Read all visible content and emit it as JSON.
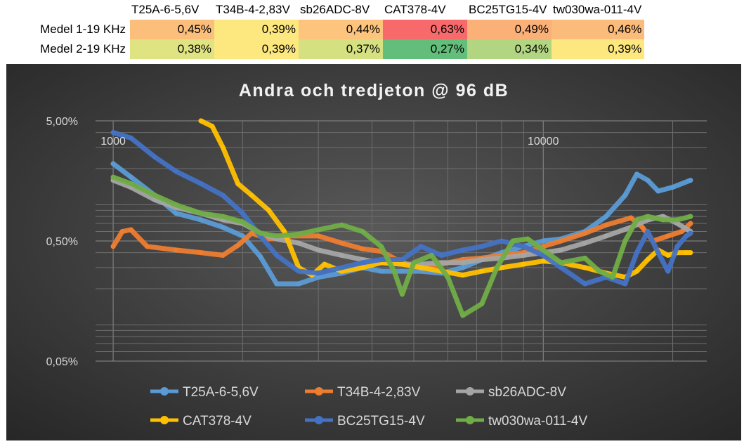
{
  "table": {
    "columns": [
      "T25A-6-5,6V",
      "T34B-4-2,83V",
      "sb26ADC-8V",
      "CAT378-4V",
      "BC25TG15-4V",
      "tw030wa-011-4V"
    ],
    "rows": [
      {
        "label": "Medel 1-19 KHz",
        "values": [
          "0,45%",
          "0,39%",
          "0,44%",
          "0,63%",
          "0,49%",
          "0,46%"
        ],
        "colors": [
          "#fbbf7b",
          "#fde880",
          "#fcc47c",
          "#f8696b",
          "#fbb078",
          "#fbbb7a"
        ]
      },
      {
        "label": "Medel 2-19 KHz",
        "values": [
          "0,38%",
          "0,39%",
          "0,37%",
          "0,27%",
          "0,34%",
          "0,39%"
        ],
        "colors": [
          "#e0e381",
          "#fde880",
          "#d5e080",
          "#63be7b",
          "#b1d580",
          "#fde880"
        ]
      }
    ]
  },
  "chart_data": {
    "type": "line",
    "title": "Andra och tredjeton @ 96 dB",
    "x_scale": "log",
    "y_scale": "log",
    "xlim": [
      910,
      24000
    ],
    "ylim": [
      0.05,
      5.0
    ],
    "x_tick_labels": [
      "1000",
      "10000"
    ],
    "y_tick_labels": [
      "5,00%",
      "0,50%",
      "0,05%"
    ],
    "y_ticks": [
      5.0,
      0.5,
      0.05
    ],
    "x_ticks": [
      1000,
      10000
    ],
    "grid": true,
    "legend_position": "bottom",
    "series": [
      {
        "name": "T25A-6-5,6V",
        "color": "#5b9bd5",
        "x": [
          1000,
          1100,
          1250,
          1400,
          1600,
          1800,
          2000,
          2200,
          2400,
          2700,
          3000,
          3400,
          3800,
          4200,
          4700,
          5200,
          5800,
          6500,
          7200,
          8000,
          9000,
          10000,
          11000,
          12500,
          14000,
          15500,
          16500,
          17500,
          18500,
          20000,
          22000
        ],
        "y": [
          2.2,
          1.7,
          1.2,
          0.85,
          0.75,
          0.65,
          0.55,
          0.37,
          0.22,
          0.22,
          0.25,
          0.27,
          0.3,
          0.28,
          0.28,
          0.28,
          0.27,
          0.3,
          0.35,
          0.4,
          0.45,
          0.5,
          0.52,
          0.6,
          0.8,
          1.2,
          1.8,
          1.6,
          1.3,
          1.4,
          1.6
        ]
      },
      {
        "name": "T34B-4-2,83V",
        "color": "#ed7d31",
        "x": [
          1000,
          1050,
          1100,
          1200,
          1400,
          1600,
          1800,
          1950,
          2100,
          2300,
          2600,
          3000,
          3400,
          3800,
          4200,
          4700,
          5200,
          5800,
          6500,
          7200,
          8000,
          9000,
          10000,
          11000,
          12500,
          14000,
          16000,
          17000,
          18000,
          19500,
          21000,
          22000
        ],
        "y": [
          0.45,
          0.6,
          0.62,
          0.45,
          0.42,
          0.4,
          0.38,
          0.46,
          0.58,
          0.52,
          0.55,
          0.55,
          0.48,
          0.43,
          0.41,
          0.33,
          0.3,
          0.32,
          0.35,
          0.36,
          0.38,
          0.4,
          0.45,
          0.5,
          0.58,
          0.68,
          0.78,
          0.65,
          0.5,
          0.55,
          0.6,
          0.7
        ]
      },
      {
        "name": "sb26ADC-8V",
        "color": "#a5a5a5",
        "x": [
          1000,
          1100,
          1250,
          1400,
          1600,
          1800,
          2000,
          2200,
          2400,
          2700,
          3000,
          3400,
          3800,
          4200,
          4700,
          5200,
          5800,
          6500,
          7200,
          8000,
          9000,
          10000,
          11000,
          12500,
          14000,
          16000,
          17500,
          19000,
          20500,
          22000
        ],
        "y": [
          1.6,
          1.4,
          1.1,
          0.95,
          0.85,
          0.75,
          0.7,
          0.58,
          0.52,
          0.48,
          0.42,
          0.38,
          0.35,
          0.33,
          0.32,
          0.32,
          0.33,
          0.33,
          0.35,
          0.36,
          0.38,
          0.4,
          0.42,
          0.48,
          0.55,
          0.65,
          0.75,
          0.8,
          0.7,
          0.6
        ]
      },
      {
        "name": "CAT378-4V",
        "color": "#ffc000",
        "x": [
          1600,
          1700,
          1800,
          1950,
          2100,
          2300,
          2500,
          2700,
          2900,
          3100,
          3400,
          3800,
          4200,
          4700,
          5200,
          5800,
          6500,
          7200,
          8000,
          9000,
          10000,
          11000,
          12500,
          14000,
          15500,
          16500,
          17500,
          18500,
          19500,
          20500,
          21500,
          22000
        ],
        "y": [
          5.0,
          4.5,
          3.0,
          1.5,
          1.2,
          0.9,
          0.6,
          0.3,
          0.26,
          0.32,
          0.28,
          0.3,
          0.33,
          0.32,
          0.3,
          0.28,
          0.26,
          0.28,
          0.3,
          0.32,
          0.34,
          0.33,
          0.3,
          0.27,
          0.25,
          0.28,
          0.35,
          0.42,
          0.38,
          0.4,
          0.4,
          0.4
        ]
      },
      {
        "name": "BC25TG15-4V",
        "color": "#4472c4",
        "x": [
          1000,
          1100,
          1250,
          1400,
          1600,
          1800,
          2000,
          2200,
          2400,
          2700,
          3000,
          3400,
          3800,
          4200,
          4700,
          5200,
          5800,
          6500,
          7200,
          8000,
          9000,
          10000,
          11000,
          12500,
          14000,
          15500,
          16500,
          17500,
          18500,
          19500,
          20500,
          21500,
          22000
        ],
        "y": [
          4.0,
          3.6,
          2.5,
          1.9,
          1.5,
          1.2,
          0.85,
          0.55,
          0.38,
          0.28,
          0.27,
          0.3,
          0.33,
          0.35,
          0.35,
          0.45,
          0.38,
          0.42,
          0.45,
          0.5,
          0.45,
          0.38,
          0.3,
          0.22,
          0.25,
          0.22,
          0.4,
          0.6,
          0.4,
          0.28,
          0.45,
          0.55,
          0.58
        ]
      },
      {
        "name": "tw030wa-011-4V",
        "color": "#70ad47",
        "x": [
          1000,
          1100,
          1250,
          1400,
          1600,
          1800,
          2000,
          2200,
          2400,
          2700,
          3000,
          3400,
          3800,
          4200,
          4500,
          4700,
          5000,
          5500,
          6000,
          6500,
          7200,
          7800,
          8500,
          9200,
          10000,
          11000,
          12500,
          13500,
          14500,
          15500,
          16500,
          17500,
          19000,
          20500,
          22000
        ],
        "y": [
          1.7,
          1.5,
          1.2,
          1.0,
          0.85,
          0.8,
          0.72,
          0.58,
          0.55,
          0.57,
          0.62,
          0.68,
          0.6,
          0.45,
          0.28,
          0.18,
          0.33,
          0.38,
          0.25,
          0.12,
          0.15,
          0.3,
          0.5,
          0.52,
          0.42,
          0.33,
          0.36,
          0.28,
          0.25,
          0.5,
          0.75,
          0.8,
          0.75,
          0.75,
          0.8
        ]
      }
    ]
  }
}
